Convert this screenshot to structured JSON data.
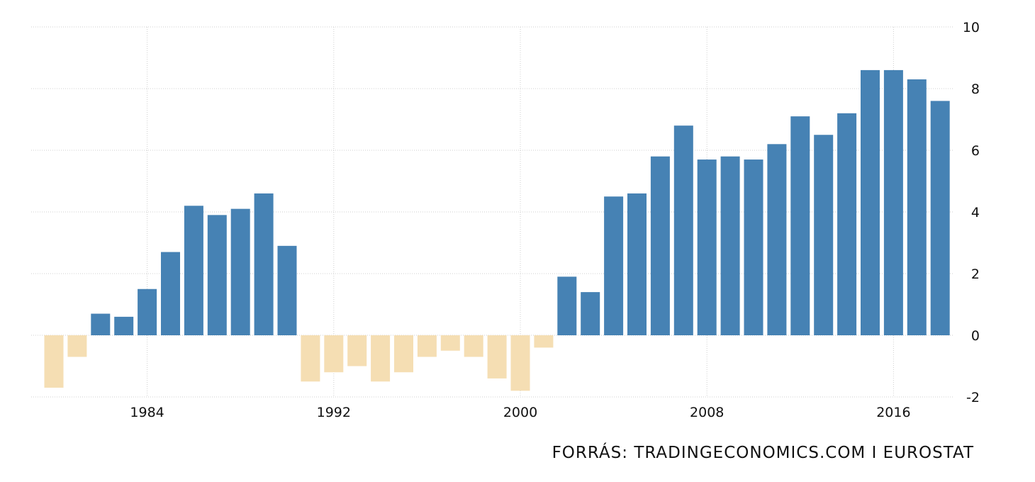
{
  "source": "FORRÁS: TRADINGECONOMICS.COM I EUROSTAT",
  "chart_data": {
    "type": "bar",
    "title": "",
    "xlabel": "",
    "ylabel": "",
    "ylim": [
      -2,
      10
    ],
    "yticks": [
      10,
      8,
      6,
      4,
      2,
      0,
      -2
    ],
    "ytick_labels": [
      "10",
      "8",
      "6",
      "4",
      "2",
      "0",
      "-2"
    ],
    "xticks": [
      1984,
      1992,
      2000,
      2008,
      2016
    ],
    "xtick_labels": [
      "1984",
      "1992",
      "2000",
      "2008",
      "2016"
    ],
    "grid": true,
    "y_axis_side": "right",
    "positive_color": "#4682b4",
    "negative_color": "#f5deb3",
    "categories": [
      1980,
      1981,
      1982,
      1983,
      1984,
      1985,
      1986,
      1987,
      1988,
      1989,
      1990,
      1991,
      1992,
      1993,
      1994,
      1995,
      1996,
      1997,
      1998,
      1999,
      2000,
      2001,
      2002,
      2003,
      2004,
      2005,
      2006,
      2007,
      2008,
      2009,
      2010,
      2011,
      2012,
      2013,
      2014,
      2015,
      2016,
      2017,
      2018
    ],
    "values": [
      -1.7,
      -0.7,
      0.7,
      0.6,
      1.5,
      2.7,
      4.2,
      3.9,
      4.1,
      4.6,
      2.9,
      -1.5,
      -1.2,
      -1.0,
      -1.5,
      -1.2,
      -0.7,
      -0.5,
      -0.7,
      -1.4,
      -1.8,
      -0.4,
      1.9,
      1.4,
      4.5,
      4.6,
      5.8,
      6.8,
      5.7,
      5.8,
      5.7,
      6.2,
      7.1,
      6.5,
      7.2,
      8.6,
      8.6,
      8.3,
      7.6
    ]
  }
}
